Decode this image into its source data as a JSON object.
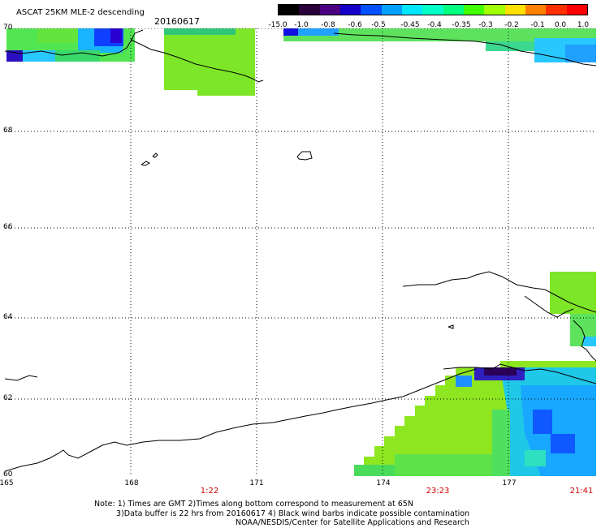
{
  "header": {
    "title": "ASCAT 25KM MLE-2 descending",
    "date": "20160617"
  },
  "colorbar": {
    "labels": [
      "-15.0",
      "-1.0",
      "-0.8",
      "-0.6",
      "-0.5",
      "-0.45",
      "-0.4",
      "-0.35",
      "-0.3",
      "-0.2",
      "-0.1",
      "0.0",
      "1.0"
    ],
    "colors": [
      "#000000",
      "#2a0038",
      "#4b0082",
      "#1400c8",
      "#0050ff",
      "#00a0ff",
      "#00e6ff",
      "#00ffc8",
      "#00ff80",
      "#40ff00",
      "#a0ff00",
      "#ffe000",
      "#ff8000",
      "#ff3000",
      "#ff0000"
    ]
  },
  "map": {
    "lat_labels": [
      "70",
      "68",
      "66",
      "64",
      "62",
      "60"
    ],
    "lon_labels": [
      "165",
      "168",
      "171",
      "174",
      "177"
    ],
    "time_labels": [
      "1:22",
      "23:23",
      "21:41"
    ],
    "time_color": "#d40000"
  },
  "notes": {
    "line1": "Note: 1) Times are GMT 2)Times along bottom correspond to measurement at 65N",
    "line2": "3)Data buffer is 22 hrs from 20160617 4) Black wind barbs indicate possible contamination",
    "line3": "NOAA/NESDIS/Center for Satellite Applications and Research"
  }
}
